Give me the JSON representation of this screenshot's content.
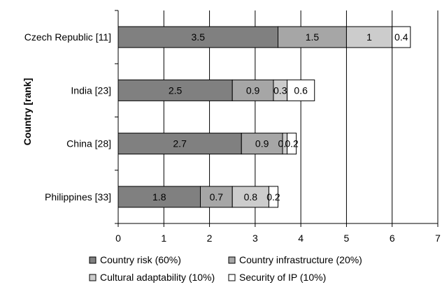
{
  "chart_data": {
    "type": "bar",
    "orientation": "horizontal",
    "stacked": true,
    "title": "",
    "xlabel": "",
    "ylabel": "Country [rank]",
    "xlim": [
      0,
      7
    ],
    "xticks": [
      "0",
      "1",
      "2",
      "3",
      "4",
      "5",
      "6",
      "7"
    ],
    "grid": "vertical",
    "legend_position": "bottom",
    "categories": [
      "Czech Republic [11]",
      "India [23]",
      "China [28]",
      "Philippines [33]"
    ],
    "series": [
      {
        "name": "Country risk (60%)",
        "color": "#808080",
        "values": [
          3.5,
          2.5,
          2.7,
          1.8
        ],
        "labels": [
          "3.5",
          "2.5",
          "2.7",
          "1.8"
        ]
      },
      {
        "name": "Country infrastructure (20%)",
        "color": "#a6a6a6",
        "values": [
          1.5,
          0.9,
          0.9,
          0.7
        ],
        "labels": [
          "1.5",
          "0.9",
          "0.9",
          "0.7"
        ]
      },
      {
        "name": "Cultural adaptability (10%)",
        "color": "#cccccc",
        "values": [
          1.0,
          0.3,
          0.1,
          0.8
        ],
        "labels": [
          "1",
          "0.3",
          "0.1",
          "0.8"
        ]
      },
      {
        "name": "Security of IP (10%)",
        "color": "#ffffff",
        "values": [
          0.4,
          0.6,
          0.2,
          0.2
        ],
        "labels": [
          "0.4",
          "0.6",
          "0.2",
          "0.2"
        ]
      }
    ]
  }
}
